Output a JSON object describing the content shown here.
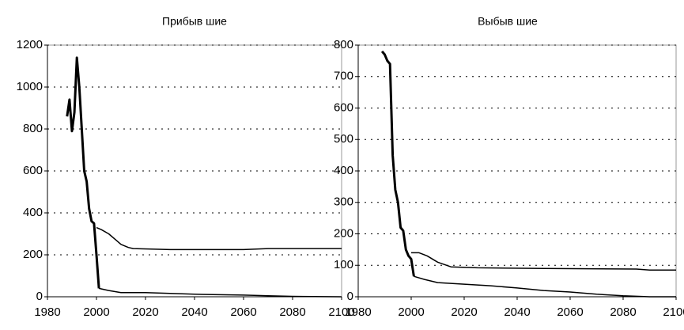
{
  "chart_data": [
    {
      "type": "line",
      "title": "Прибыв шие",
      "xlim": [
        1980,
        2100
      ],
      "xticks": [
        1980,
        2000,
        2020,
        2040,
        2060,
        2080,
        2100
      ],
      "ylim": [
        0,
        1200
      ],
      "yticks": [
        0,
        200,
        400,
        600,
        800,
        1000,
        1200
      ],
      "grid": true,
      "series": [
        {
          "color": "#000000",
          "width": 3,
          "x": [
            1988,
            1989,
            1990,
            1991,
            1992,
            1993,
            1994,
            1995,
            1996,
            1997,
            1998,
            1999,
            2000,
            2001
          ],
          "values": [
            860,
            940,
            790,
            880,
            1140,
            1000,
            800,
            600,
            550,
            420,
            360,
            350,
            200,
            40
          ]
        },
        {
          "color": "#000000",
          "width": 1.5,
          "x": [
            2000,
            2002,
            2005,
            2008,
            2010,
            2013,
            2015,
            2030,
            2060,
            2070,
            2100
          ],
          "values": [
            330,
            320,
            300,
            270,
            250,
            235,
            230,
            225,
            225,
            230,
            230
          ]
        },
        {
          "color": "#000000",
          "width": 1.5,
          "x": [
            2001,
            2005,
            2010,
            2020,
            2040,
            2060,
            2070,
            2080,
            2100
          ],
          "values": [
            40,
            30,
            20,
            20,
            12,
            8,
            5,
            2,
            0
          ]
        }
      ]
    },
    {
      "type": "line",
      "title": "Выбыв шие",
      "xlim": [
        1980,
        2100
      ],
      "xticks": [
        1980,
        2000,
        2020,
        2040,
        2060,
        2080,
        2100
      ],
      "ylim": [
        0,
        800
      ],
      "yticks": [
        0,
        100,
        200,
        300,
        400,
        500,
        600,
        700,
        800
      ],
      "grid": true,
      "series": [
        {
          "color": "#000000",
          "width": 3,
          "x": [
            1989,
            1990,
            1991,
            1992,
            1993,
            1994,
            1995,
            1996,
            1997,
            1998,
            1999,
            2000,
            2001
          ],
          "values": [
            780,
            770,
            750,
            740,
            450,
            340,
            300,
            220,
            210,
            150,
            130,
            120,
            65
          ]
        },
        {
          "color": "#000000",
          "width": 1.5,
          "x": [
            2000,
            2003,
            2006,
            2010,
            2015,
            2025,
            2050,
            2085,
            2090,
            2100
          ],
          "values": [
            140,
            140,
            130,
            110,
            95,
            92,
            90,
            88,
            85,
            85
          ]
        },
        {
          "color": "#000000",
          "width": 1.5,
          "x": [
            2001,
            2005,
            2010,
            2020,
            2030,
            2040,
            2050,
            2060,
            2070,
            2080,
            2090,
            2100
          ],
          "values": [
            65,
            55,
            45,
            40,
            35,
            28,
            20,
            15,
            8,
            3,
            0,
            0
          ]
        }
      ]
    }
  ]
}
